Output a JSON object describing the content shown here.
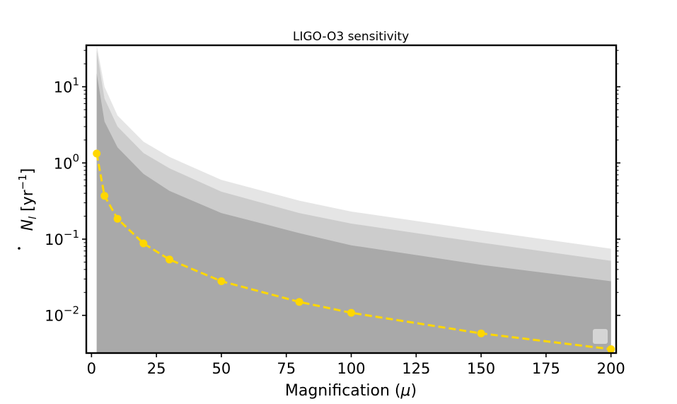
{
  "chart_data": {
    "type": "line",
    "title": "LIGO-O3 sensitivity",
    "xlabel_main": "Magnification (",
    "xlabel_mu": "μ",
    "xlabel_close": ")",
    "ylabel_main": "N",
    "ylabel_sub": "l",
    "ylabel_unit_open": " [yr",
    "ylabel_unit_exp": "−1",
    "ylabel_unit_close": "]",
    "x_ticks": [
      0,
      25,
      50,
      75,
      100,
      125,
      150,
      175,
      200
    ],
    "x_tick_labels": [
      "0",
      "25",
      "50",
      "75",
      "100",
      "125",
      "150",
      "175",
      "200"
    ],
    "y_ticks": [
      -2,
      -1,
      0,
      1
    ],
    "y_tick_labels": [
      {
        "base": "10",
        "exp": "−2"
      },
      {
        "base": "10",
        "exp": "−1"
      },
      {
        "base": "10",
        "exp": "0"
      },
      {
        "base": "10",
        "exp": "1"
      }
    ],
    "xlim": [
      -2,
      202
    ],
    "ylim": [
      0.0032,
      35
    ],
    "yscale": "log",
    "grid": false,
    "legend": "lower right, empty",
    "bands": [
      {
        "color": "#e5e5e5",
        "x": [
          2,
          5,
          10,
          20,
          30,
          50,
          80,
          100,
          150,
          200
        ],
        "y": [
          35,
          10,
          4.2,
          1.9,
          1.2,
          0.6,
          0.32,
          0.23,
          0.13,
          0.075
        ]
      },
      {
        "color": "#cccccc",
        "x": [
          2,
          5,
          10,
          20,
          30,
          50,
          80,
          100,
          150,
          200
        ],
        "y": [
          30,
          7.0,
          3.0,
          1.35,
          0.85,
          0.42,
          0.22,
          0.16,
          0.09,
          0.052
        ]
      },
      {
        "color": "#a9a9a9",
        "x": [
          2,
          5,
          10,
          20,
          30,
          50,
          80,
          100,
          150,
          200
        ],
        "y": [
          15,
          3.5,
          1.6,
          0.72,
          0.43,
          0.22,
          0.12,
          0.083,
          0.046,
          0.028
        ]
      }
    ],
    "series": [
      {
        "color": "#ffd700",
        "x": [
          2,
          5,
          10,
          20,
          30,
          50,
          80,
          100,
          150,
          200
        ],
        "y": [
          1.33,
          0.37,
          0.185,
          0.088,
          0.054,
          0.028,
          0.015,
          0.0108,
          0.0058,
          0.0036
        ]
      }
    ]
  }
}
